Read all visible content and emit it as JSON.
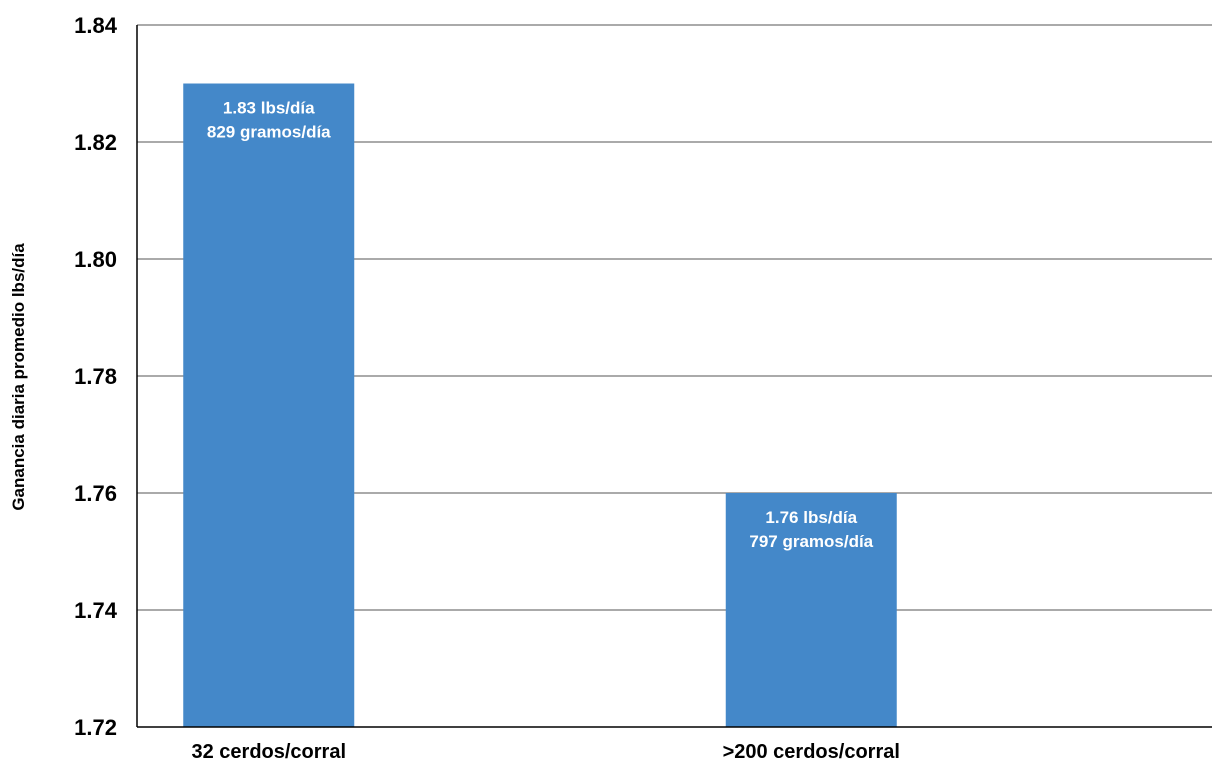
{
  "chart_data": {
    "type": "bar",
    "categories": [
      "32 cerdos/corral",
      ">200 cerdos/corral"
    ],
    "values": [
      1.83,
      1.76
    ],
    "bar_labels": [
      [
        "1.83 lbs/día",
        "829 gramos/día"
      ],
      [
        "1.76 lbs/día",
        "797 gramos/día"
      ]
    ],
    "title": "",
    "xlabel": "",
    "ylabel": "Ganancia diaria promedio lbs/día",
    "ylim": [
      1.72,
      1.84
    ],
    "yticks": [
      1.72,
      1.74,
      1.76,
      1.78,
      1.8,
      1.82,
      1.84
    ],
    "ytick_labels": [
      "1.72",
      "1.74",
      "1.76",
      "1.78",
      "1.80",
      "1.82",
      "1.84"
    ],
    "grid": true,
    "legend": "none",
    "colors": {
      "bar": "#4488c9",
      "bar_text": "#ffffff",
      "grid": "#555555",
      "axis": "#000000"
    }
  }
}
